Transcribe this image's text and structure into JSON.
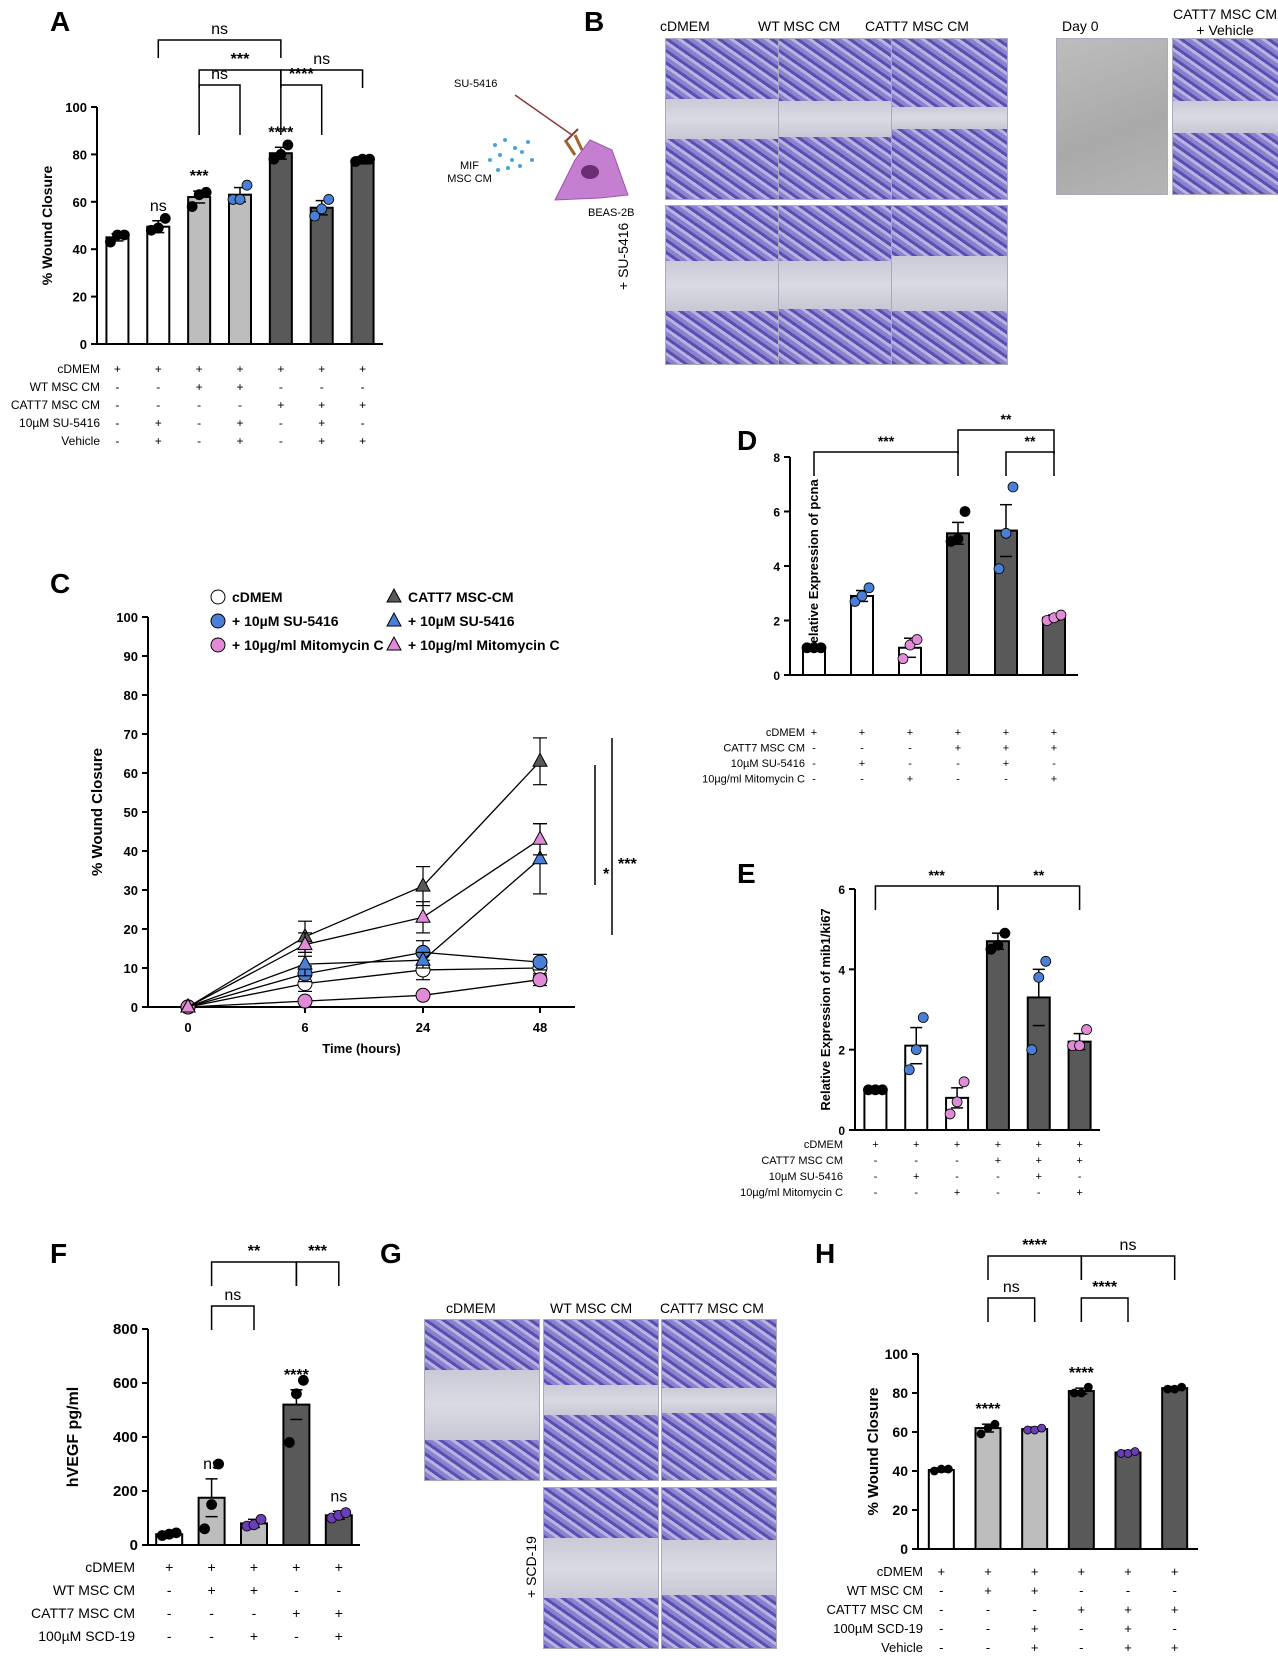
{
  "panel_letters": [
    "A",
    "B",
    "C",
    "D",
    "E",
    "F",
    "G",
    "H"
  ],
  "colors": {
    "white": "#ffffff",
    "light": "#bdbdbd",
    "dark": "#595959",
    "black": "#000000",
    "blue": "#4a7fd6",
    "pink": "#e08ad8",
    "purple": "#6a3fb5"
  },
  "chart_data": [
    {
      "panel": "A",
      "type": "bar",
      "ylabel": "% Wound Closure",
      "ylim": [
        0,
        100
      ],
      "yticks": [
        0,
        20,
        40,
        60,
        80,
        100
      ],
      "values": [
        45,
        49.5,
        62,
        63,
        80.5,
        57.5,
        77.5
      ],
      "errors": [
        1.5,
        2.5,
        2.5,
        3,
        2.5,
        3,
        1.5
      ],
      "fills": [
        "white",
        "white",
        "light",
        "light",
        "dark",
        "dark",
        "dark"
      ],
      "dots": [
        [
          43,
          46,
          46
        ],
        [
          48,
          49,
          53
        ],
        [
          58,
          63,
          64
        ],
        [
          61,
          61,
          67
        ],
        [
          78,
          80,
          84
        ],
        [
          54,
          57,
          61
        ],
        [
          77,
          78,
          78
        ]
      ],
      "dot_color": [
        "black",
        "black",
        "black",
        "blue",
        "black",
        "blue",
        "black"
      ],
      "above": [
        "",
        "ns",
        "***",
        "",
        "****",
        "",
        ""
      ],
      "brackets": [
        {
          "from": 1,
          "to": 4,
          "label": "ns",
          "level": 0
        },
        {
          "from": 2,
          "to": 4,
          "label": "***",
          "level": 1
        },
        {
          "from": 4,
          "to": 6,
          "label": "ns",
          "level": 1
        },
        {
          "from": 2,
          "to": 3,
          "label": "ns",
          "level": 2
        },
        {
          "from": 4,
          "to": 5,
          "label": "****",
          "level": 2
        }
      ],
      "cond_labels": [
        "cDMEM",
        "WT MSC CM",
        "CATT7 MSC CM",
        "10µM SU-5416",
        "Vehicle"
      ],
      "cond_grid": [
        [
          "+",
          "+",
          "+",
          "+",
          "+",
          "+",
          "+"
        ],
        [
          "-",
          "-",
          "+",
          "+",
          "-",
          "-",
          "-"
        ],
        [
          "-",
          "-",
          "-",
          "-",
          "+",
          "+",
          "+"
        ],
        [
          "-",
          "+",
          "-",
          "+",
          "-",
          "+",
          "-"
        ],
        [
          "-",
          "+",
          "-",
          "+",
          "-",
          "+",
          "+"
        ]
      ]
    },
    {
      "panel": "C",
      "type": "line",
      "xlabel": "Time (hours)",
      "ylabel": "% Wound Closure",
      "categories": [
        "0",
        "6",
        "24",
        "48"
      ],
      "ylim": [
        0,
        100
      ],
      "yticks": [
        0,
        10,
        20,
        30,
        40,
        50,
        60,
        70,
        80,
        90,
        100
      ],
      "series": [
        {
          "name": "cDMEM",
          "marker": "circle",
          "fill": "white",
          "values": [
            0,
            6,
            9.5,
            10
          ],
          "err": [
            0,
            2,
            2.5,
            2
          ]
        },
        {
          "name": "+ 10µM SU-5416",
          "marker": "circle",
          "fill": "blue",
          "values": [
            0,
            8.5,
            14,
            11.5
          ],
          "err": [
            0,
            2,
            3,
            2
          ]
        },
        {
          "name": "+ 10µg/ml Mitomycin C",
          "marker": "circle",
          "fill": "pink",
          "values": [
            0,
            1.5,
            3,
            7
          ],
          "err": [
            0,
            0.5,
            0.5,
            1.5
          ]
        },
        {
          "name": "CATT7 MSC-CM",
          "marker": "triangle",
          "fill": "dark",
          "values": [
            0,
            18,
            31,
            63
          ],
          "err": [
            0,
            4,
            5,
            6
          ]
        },
        {
          "name": "+ 10µM SU-5416",
          "marker": "triangle",
          "fill": "blue",
          "values": [
            0,
            11,
            12,
            38
          ],
          "err": [
            0,
            3,
            2,
            9
          ]
        },
        {
          "name": "+ 10µg/ml Mitomycin C",
          "marker": "triangle",
          "fill": "pink",
          "values": [
            0,
            16,
            23,
            43
          ],
          "err": [
            0,
            3,
            4,
            4
          ]
        }
      ],
      "sig": [
        "*",
        "***"
      ]
    },
    {
      "panel": "D",
      "type": "bar",
      "ylabel": "Relative Expression of pcna",
      "ylim": [
        0,
        8
      ],
      "yticks": [
        0,
        2,
        4,
        6,
        8
      ],
      "values": [
        1.0,
        2.9,
        1.0,
        5.2,
        5.3,
        2.1
      ],
      "errors": [
        0.03,
        0.2,
        0.35,
        0.4,
        0.95,
        0.1
      ],
      "fills": [
        "white",
        "white",
        "white",
        "dark",
        "dark",
        "dark"
      ],
      "dots": [
        [
          1,
          1,
          1
        ],
        [
          2.7,
          2.9,
          3.2
        ],
        [
          0.6,
          1.1,
          1.3
        ],
        [
          4.9,
          5.0,
          6.0
        ],
        [
          3.9,
          5.2,
          6.9
        ],
        [
          2.0,
          2.1,
          2.2
        ]
      ],
      "dot_color": [
        "black",
        "blue",
        "pink",
        "black",
        "blue",
        "pink"
      ],
      "brackets": [
        {
          "from": 0,
          "to": 3,
          "label": "***",
          "level": 0
        },
        {
          "from": 3,
          "to": 5,
          "label": "**",
          "level": 1
        },
        {
          "from": 4,
          "to": 5,
          "label": "**",
          "level": 0
        }
      ],
      "cond_labels": [
        "cDMEM",
        "CATT7 MSC CM",
        "10µM SU-5416",
        "10µg/ml Mitomycin C"
      ],
      "cond_grid": [
        [
          "+",
          "+",
          "+",
          "+",
          "+",
          "+"
        ],
        [
          "-",
          "-",
          "-",
          "+",
          "+",
          "+"
        ],
        [
          "-",
          "+",
          "-",
          "-",
          "+",
          "-"
        ],
        [
          "-",
          "-",
          "+",
          "-",
          "-",
          "+"
        ]
      ]
    },
    {
      "panel": "E",
      "type": "bar",
      "ylabel": "Relative Expression of mib1/ki67",
      "ylim": [
        0,
        6
      ],
      "yticks": [
        0,
        2,
        4,
        6
      ],
      "values": [
        1.0,
        2.1,
        0.8,
        4.7,
        3.3,
        2.2
      ],
      "errors": [
        0.03,
        0.45,
        0.25,
        0.2,
        0.7,
        0.2
      ],
      "fills": [
        "white",
        "white",
        "white",
        "dark",
        "dark",
        "dark"
      ],
      "dots": [
        [
          1,
          1,
          1
        ],
        [
          1.5,
          2.0,
          2.8
        ],
        [
          0.4,
          0.7,
          1.2
        ],
        [
          4.5,
          4.6,
          4.9
        ],
        [
          2.0,
          3.8,
          4.2
        ],
        [
          2.1,
          2.1,
          2.5
        ]
      ],
      "dot_color": [
        "black",
        "blue",
        "pink",
        "black",
        "blue",
        "pink"
      ],
      "brackets": [
        {
          "from": 0,
          "to": 3,
          "label": "***",
          "level": 0
        },
        {
          "from": 3,
          "to": 5,
          "label": "**",
          "level": 0
        }
      ],
      "cond_labels": [
        "cDMEM",
        "CATT7 MSC CM",
        "10µM SU-5416",
        "10µg/ml Mitomycin C"
      ],
      "cond_grid": [
        [
          "+",
          "+",
          "+",
          "+",
          "+",
          "+"
        ],
        [
          "-",
          "-",
          "-",
          "+",
          "+",
          "+"
        ],
        [
          "-",
          "+",
          "-",
          "-",
          "+",
          "-"
        ],
        [
          "-",
          "-",
          "+",
          "-",
          "-",
          "+"
        ]
      ]
    },
    {
      "panel": "F",
      "type": "bar",
      "ylabel": "hVEGF pg/ml",
      "ylim": [
        0,
        800
      ],
      "yticks": [
        0,
        200,
        400,
        600,
        800
      ],
      "values": [
        40,
        175,
        80,
        520,
        110
      ],
      "errors": [
        5,
        70,
        15,
        55,
        15
      ],
      "fills": [
        "white",
        "light",
        "light",
        "dark",
        "dark"
      ],
      "dots": [
        [
          35,
          40,
          45
        ],
        [
          60,
          150,
          300
        ],
        [
          70,
          75,
          95
        ],
        [
          380,
          560,
          610
        ],
        [
          100,
          110,
          120
        ]
      ],
      "dot_color": [
        "black",
        "black",
        "purple",
        "black",
        "purple"
      ],
      "above": [
        "",
        "ns",
        "",
        "****",
        "ns"
      ],
      "brackets": [
        {
          "from": 1,
          "to": 3,
          "label": "**",
          "level": 1
        },
        {
          "from": 3,
          "to": 4,
          "label": "***",
          "level": 1
        },
        {
          "from": 1,
          "to": 2,
          "label": "ns",
          "level": 0
        }
      ],
      "cond_labels": [
        "cDMEM",
        "WT MSC CM",
        "CATT7 MSC CM",
        "100µM SCD-19"
      ],
      "cond_grid": [
        [
          "+",
          "+",
          "+",
          "+",
          "+"
        ],
        [
          "-",
          "+",
          "+",
          "-",
          "-"
        ],
        [
          "-",
          "-",
          "-",
          "+",
          "+"
        ],
        [
          "-",
          "-",
          "+",
          "-",
          "+"
        ]
      ]
    },
    {
      "panel": "H",
      "type": "bar",
      "ylabel": "% Wound Closure",
      "ylim": [
        0,
        100
      ],
      "yticks": [
        0,
        20,
        40,
        60,
        80,
        100
      ],
      "values": [
        40.5,
        62,
        61.5,
        81,
        49.5,
        82.5
      ],
      "errors": [
        1.0,
        2.0,
        1.0,
        1.5,
        1.0,
        0.8
      ],
      "fills": [
        "white",
        "light",
        "light",
        "dark",
        "dark",
        "dark"
      ],
      "dots": [
        [
          40,
          41,
          41
        ],
        [
          59,
          62,
          64
        ],
        [
          61,
          61,
          62
        ],
        [
          80,
          80,
          83
        ],
        [
          49,
          49,
          50
        ],
        [
          82,
          82,
          83
        ]
      ],
      "dot_color": [
        "black",
        "black",
        "purple",
        "black",
        "purple",
        "black"
      ],
      "above": [
        "",
        "****",
        "",
        "****",
        "",
        ""
      ],
      "brackets": [
        {
          "from": 1,
          "to": 3,
          "label": "****",
          "level": 0
        },
        {
          "from": 3,
          "to": 5,
          "label": "ns",
          "level": 0
        },
        {
          "from": 1,
          "to": 2,
          "label": "ns",
          "level": 1
        },
        {
          "from": 3,
          "to": 4,
          "label": "****",
          "level": 1
        }
      ],
      "cond_labels": [
        "cDMEM",
        "WT MSC CM",
        "CATT7 MSC CM",
        "100µM SCD-19",
        "Vehicle"
      ],
      "cond_grid": [
        [
          "+",
          "+",
          "+",
          "+",
          "+",
          "+"
        ],
        [
          "-",
          "+",
          "+",
          "-",
          "-",
          "-"
        ],
        [
          "-",
          "-",
          "-",
          "+",
          "+",
          "+"
        ],
        [
          "-",
          "-",
          "+",
          "-",
          "+",
          "-"
        ],
        [
          "-",
          "-",
          "+",
          "-",
          "+",
          "+"
        ]
      ]
    }
  ],
  "panel_b": {
    "top_headers": [
      "cDMEM",
      "WT MSC CM",
      "CATT7 MSC CM"
    ],
    "side_label": "+ SU-5416",
    "extra_headers": [
      "Day 0",
      "CATT7 MSC CM + Vehicle"
    ],
    "diagram": {
      "drug": "SU-5416",
      "ligand": "MIF MSC CM",
      "cell": "BEAS-2B"
    }
  },
  "panel_g": {
    "top_headers": [
      "cDMEM",
      "WT MSC CM",
      "CATT7 MSC CM"
    ],
    "side_label": "+ SCD-19"
  }
}
